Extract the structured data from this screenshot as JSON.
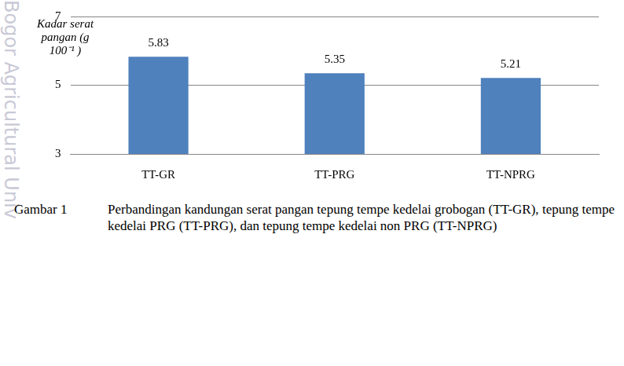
{
  "chart_data": {
    "type": "bar",
    "y_label": "Kadar serat pangan (g 100⁻¹ )",
    "categories": [
      "TT-GR",
      "TT-PRG",
      "TT-NPRG"
    ],
    "values": [
      5.83,
      5.35,
      5.21
    ],
    "color": "#4f81bd",
    "ylim": [
      3,
      7
    ],
    "yticks": [
      3,
      5,
      7
    ],
    "grid": true,
    "data_labels": true
  },
  "caption": {
    "label": "Gambar 1",
    "text": "Perbandingan kandungan serat pangan tepung tempe kedelai grobogan (TT-GR), tepung tempe kedelai PRG (TT-PRG), dan tepung tempe kedelai non PRG (TT-NPRG)"
  },
  "watermark": "Bogor Agricultural Univ"
}
